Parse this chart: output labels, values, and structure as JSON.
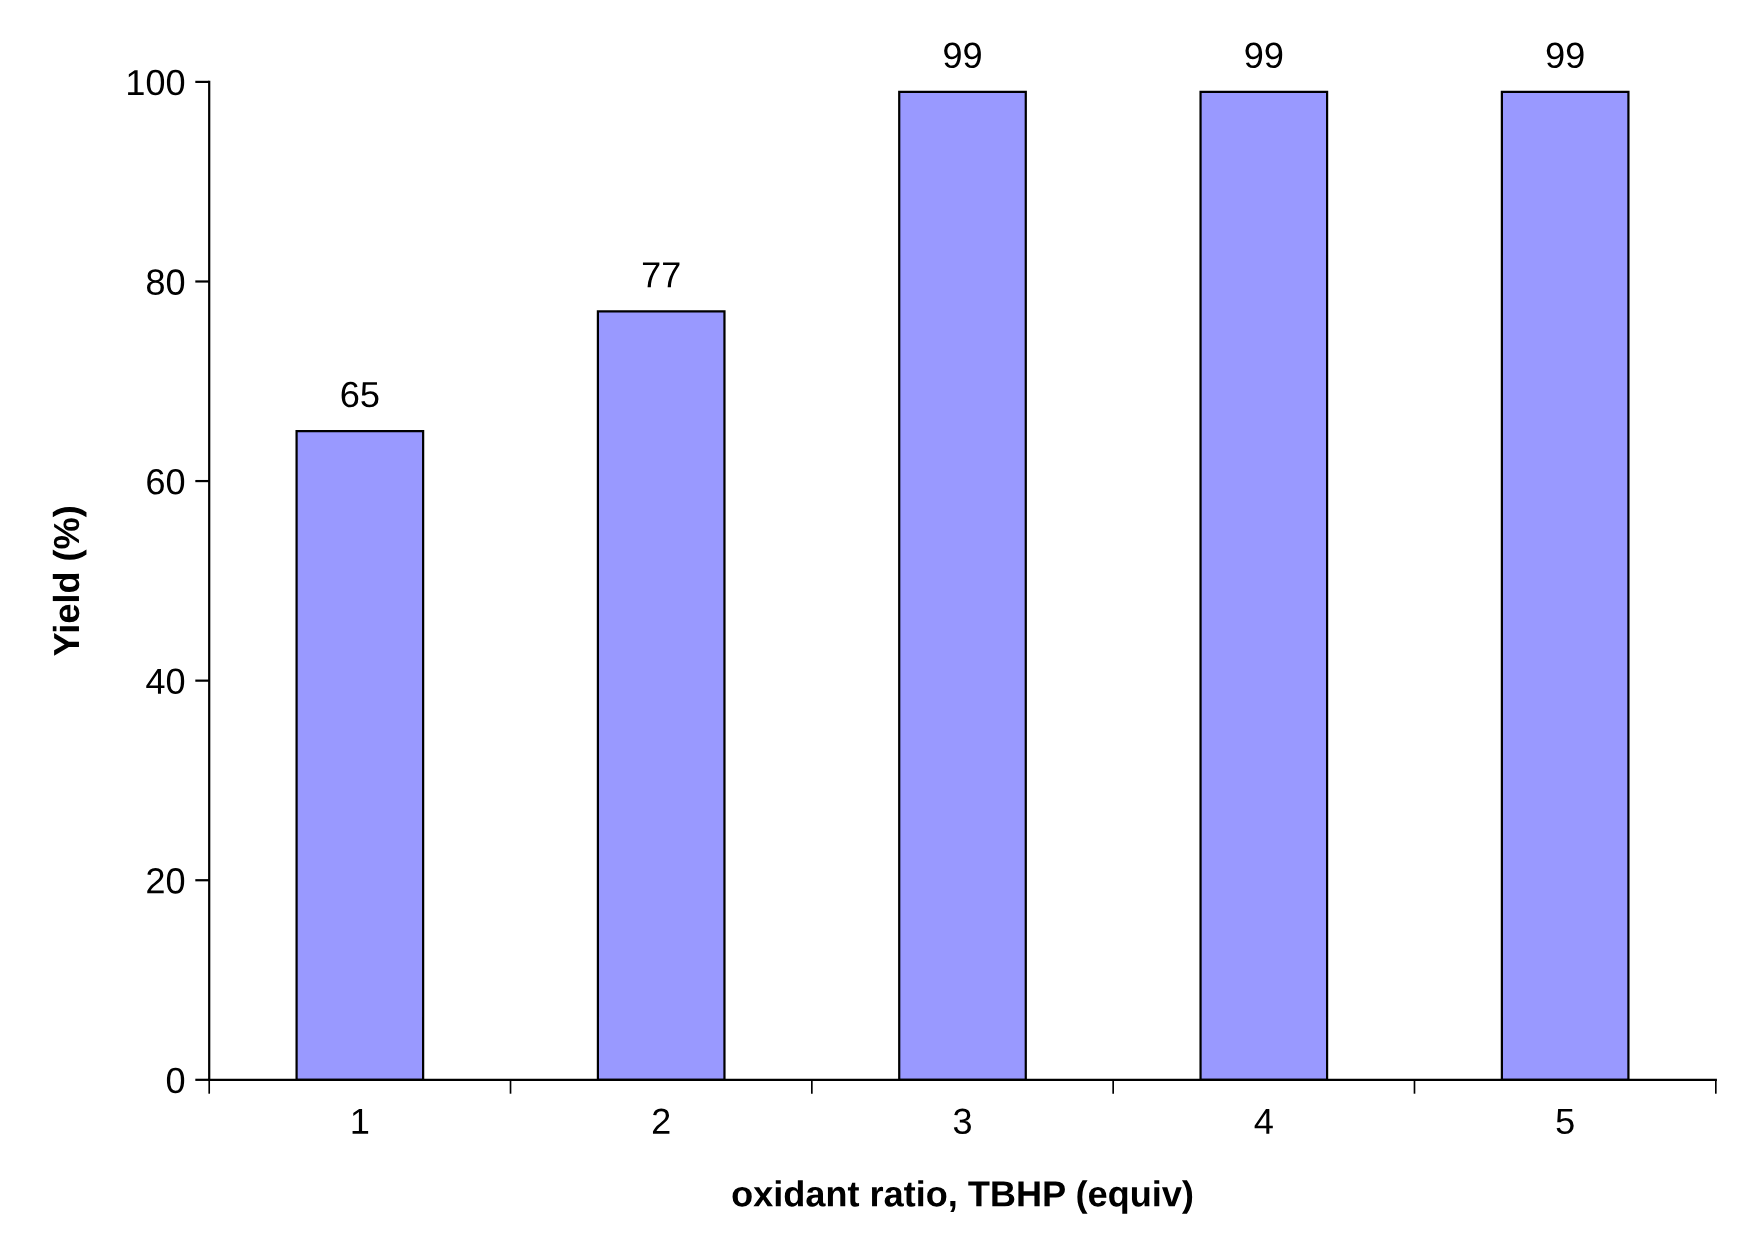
{
  "chart_data": {
    "type": "bar",
    "xlabel": "oxidant ratio, TBHP (equiv)",
    "ylabel": "Yield (%)",
    "categories": [
      "1",
      "2",
      "3",
      "4",
      "5"
    ],
    "values": [
      65,
      77,
      99,
      99,
      99
    ],
    "color": "#9999ff",
    "ylim": [
      0,
      100
    ],
    "yticks": [
      0,
      20,
      40,
      60,
      80,
      100
    ],
    "grid": false,
    "data_labels": true
  }
}
